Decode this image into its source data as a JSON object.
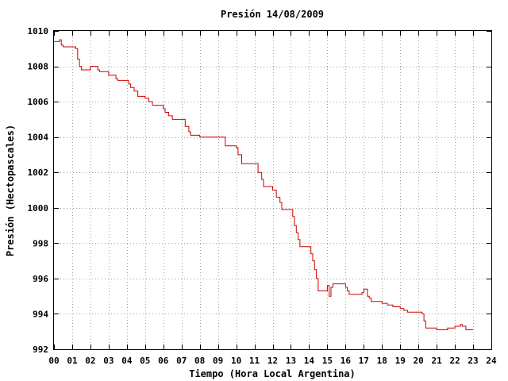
{
  "chart_data": {
    "type": "line",
    "title": "Presión 14/08/2009",
    "xlabel": "Tiempo (Hora Local Argentina)",
    "ylabel": "Presión (Hectopascales)",
    "xlim": [
      0,
      24
    ],
    "ylim": [
      992,
      1010
    ],
    "x_ticks": [
      0,
      1,
      2,
      3,
      4,
      5,
      6,
      7,
      8,
      9,
      10,
      11,
      12,
      13,
      14,
      15,
      16,
      17,
      18,
      19,
      20,
      21,
      22,
      23,
      24
    ],
    "x_tick_labels": [
      "00",
      "01",
      "02",
      "03",
      "04",
      "05",
      "06",
      "07",
      "08",
      "09",
      "10",
      "11",
      "12",
      "13",
      "14",
      "15",
      "16",
      "17",
      "18",
      "19",
      "20",
      "21",
      "22",
      "23",
      "24"
    ],
    "y_ticks": [
      992,
      994,
      996,
      998,
      1000,
      1002,
      1004,
      1006,
      1008,
      1010
    ],
    "y_tick_labels": [
      "992",
      "994",
      "996",
      "998",
      "1000",
      "1002",
      "1004",
      "1006",
      "1008",
      "1010"
    ],
    "grid": true,
    "line_color": "#cc0000",
    "series": [
      {
        "x": [
          0,
          0.2,
          0.3,
          0.4,
          0.5,
          0.7,
          1.2,
          1.3,
          1.4,
          1.5,
          2.0,
          2.4,
          2.5,
          3.0,
          3.4,
          3.5,
          4.1,
          4.2,
          4.4,
          4.6,
          5.0,
          5.2,
          5.4,
          6.0,
          6.1,
          6.3,
          6.5,
          7.0,
          7.2,
          7.4,
          7.5,
          8.0,
          8.4,
          9.3,
          9.4,
          10.0,
          10.1,
          10.3,
          11.0,
          11.2,
          11.4,
          11.5,
          12.0,
          12.2,
          12.4,
          12.5,
          13.0,
          13.1,
          13.2,
          13.3,
          13.4,
          13.5,
          14.0,
          14.1,
          14.2,
          14.3,
          14.4,
          14.5,
          14.9,
          15.0,
          15.1,
          15.2,
          15.3,
          15.5,
          16.0,
          16.1,
          16.2,
          16.4,
          16.9,
          17.0,
          17.2,
          17.3,
          17.4,
          17.5,
          18.0,
          18.3,
          18.6,
          19.0,
          19.2,
          19.4,
          19.6,
          20.0,
          20.2,
          20.3,
          20.4,
          21.0,
          21.4,
          21.6,
          22.0,
          22.3,
          22.4,
          22.5,
          22.6,
          23.0
        ],
        "values": [
          1009.4,
          1009.4,
          1009.5,
          1009.2,
          1009.1,
          1009.1,
          1009.0,
          1008.4,
          1008.0,
          1007.8,
          1008.0,
          1007.8,
          1007.7,
          1007.5,
          1007.3,
          1007.2,
          1007.0,
          1006.8,
          1006.6,
          1006.3,
          1006.2,
          1006.0,
          1005.8,
          1005.6,
          1005.4,
          1005.2,
          1005.0,
          1005.0,
          1004.6,
          1004.3,
          1004.1,
          1004.0,
          1004.0,
          1004.0,
          1003.5,
          1003.4,
          1003.0,
          1002.5,
          1002.5,
          1002.0,
          1001.6,
          1001.2,
          1001.0,
          1000.6,
          1000.3,
          999.9,
          999.9,
          999.5,
          999.0,
          998.6,
          998.2,
          997.8,
          997.8,
          997.4,
          997.0,
          996.5,
          996.0,
          995.3,
          995.3,
          995.6,
          995.0,
          995.5,
          995.7,
          995.7,
          995.5,
          995.3,
          995.1,
          995.1,
          995.2,
          995.4,
          995.0,
          994.9,
          994.7,
          994.7,
          994.6,
          994.5,
          994.4,
          994.3,
          994.2,
          994.1,
          994.1,
          994.1,
          994.0,
          993.6,
          993.2,
          993.1,
          993.1,
          993.2,
          993.3,
          993.4,
          993.3,
          993.3,
          993.1,
          993.1
        ]
      }
    ]
  }
}
